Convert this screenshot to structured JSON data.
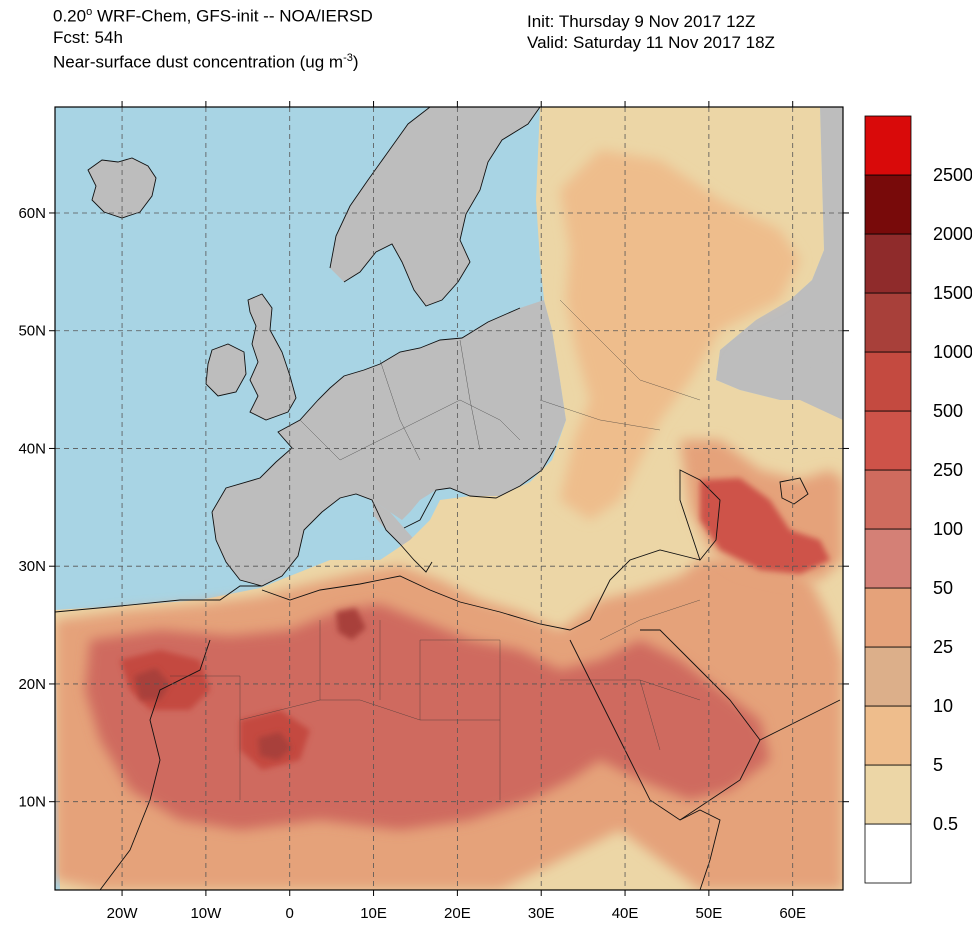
{
  "header": {
    "line1_prefix": "0.20",
    "line1_deg": "o",
    "line1_suffix": " WRF-Chem, GFS-init -- NOA/IERSD",
    "line2": "Fcst: 54h",
    "line3_prefix": "Near-surface dust concentration (ug m",
    "line3_exp": "-3",
    "line3_suffix": ")",
    "init": "Init: Thursday 9 Nov 2017  12Z",
    "valid": "Valid: Saturday 11 Nov 2017  18Z"
  },
  "map": {
    "lon_range": [
      -28,
      66
    ],
    "lat_range": [
      2.5,
      69
    ],
    "lat_labels": [
      {
        "value": 60,
        "label": "60N"
      },
      {
        "value": 50,
        "label": "50N"
      },
      {
        "value": 40,
        "label": "40N"
      },
      {
        "value": 30,
        "label": "30N"
      },
      {
        "value": 20,
        "label": "20N"
      },
      {
        "value": 10,
        "label": "10N"
      }
    ],
    "lon_labels": [
      {
        "value": -20,
        "label": "20W"
      },
      {
        "value": -10,
        "label": "10W"
      },
      {
        "value": 0,
        "label": "0"
      },
      {
        "value": 10,
        "label": "10E"
      },
      {
        "value": 20,
        "label": "20E"
      },
      {
        "value": 30,
        "label": "30E"
      },
      {
        "value": 40,
        "label": "40E"
      },
      {
        "value": 50,
        "label": "50E"
      },
      {
        "value": 60,
        "label": "60E"
      }
    ],
    "colors": {
      "sea": "#a8d4e4",
      "land": "#bdbdbd",
      "grid": "#555555"
    }
  },
  "colorbar": {
    "colors": [
      "#ffffff",
      "#ecd6a6",
      "#eebd8c",
      "#dcaf8a",
      "#e5a27a",
      "#d48076",
      "#cf6b5e",
      "#ce5349",
      "#c44a40",
      "#a8403a",
      "#8f2b2b",
      "#780a0a",
      "#d90a0a"
    ],
    "labels": [
      "0.5",
      "5",
      "10",
      "25",
      "50",
      "100",
      "250",
      "500",
      "1000",
      "1500",
      "2000",
      "2500"
    ]
  }
}
